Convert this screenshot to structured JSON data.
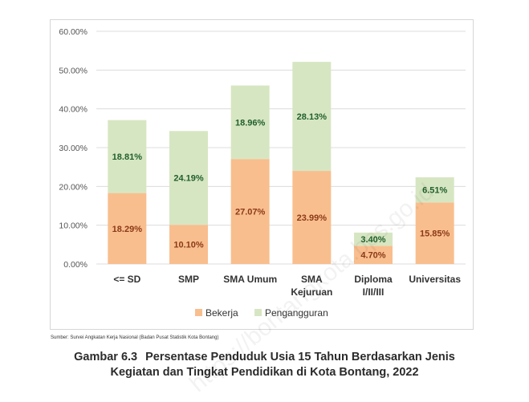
{
  "chart_data": {
    "type": "bar",
    "stacked": true,
    "categories": [
      "<= SD",
      "SMP",
      "SMA Umum",
      "SMA Kejuruan",
      "Diploma I/II/III",
      "Universitas"
    ],
    "category_lines": [
      [
        "<= SD"
      ],
      [
        "SMP"
      ],
      [
        "SMA Umum"
      ],
      [
        "SMA",
        "Kejuruan"
      ],
      [
        "Diploma",
        "I/II/III"
      ],
      [
        "Universitas"
      ]
    ],
    "series": [
      {
        "name": "Bekerja",
        "color": "#f9be8e",
        "label_color": "#8b3a17",
        "values": [
          18.29,
          10.1,
          27.07,
          23.99,
          4.7,
          15.85
        ],
        "labels": [
          "18.29%",
          "10.10%",
          "27.07%",
          "23.99%",
          "4.70%",
          "15.85%"
        ]
      },
      {
        "name": "Pengangguran",
        "color": "#d7e6c2",
        "label_color": "#1f5f2c",
        "values": [
          18.81,
          24.19,
          18.96,
          28.13,
          3.4,
          6.51
        ],
        "labels": [
          "18.81%",
          "24.19%",
          "18.96%",
          "28.13%",
          "3.40%",
          "6.51%"
        ]
      }
    ],
    "ylim": [
      0,
      60
    ],
    "y_ticks": [
      0,
      10,
      20,
      30,
      40,
      50,
      60
    ],
    "y_tick_labels": [
      "0.00%",
      "10.00%",
      "20.00%",
      "30.00%",
      "40.00%",
      "50.00%",
      "60.00%"
    ],
    "grid": true,
    "legend_position": "bottom"
  },
  "source": "Sumber: Survei Angkatan Kerja Nasional (Badan Pusat Statistik Kota Bontang)",
  "caption": {
    "number": "Gambar 6.3",
    "line1": "Persentase Penduduk Usia 15 Tahun Berdasarkan Jenis",
    "line2": "Kegiatan dan Tingkat Pendidikan di Kota Bontang, 2022"
  },
  "watermark": "https://bontangkota.bps.go.id"
}
